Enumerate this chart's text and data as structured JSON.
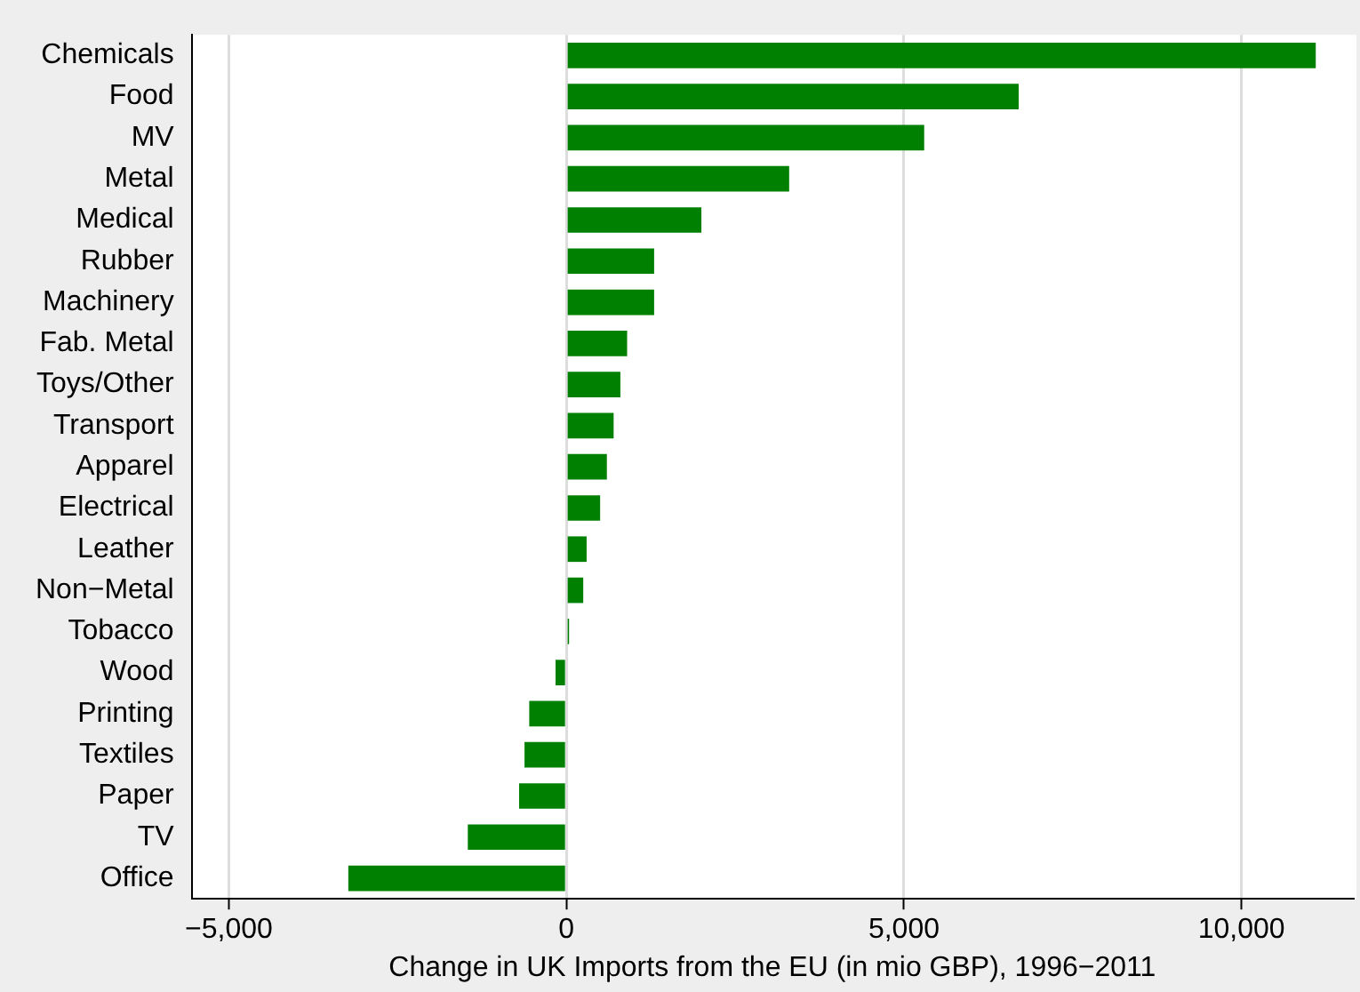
{
  "chart_data": {
    "type": "bar",
    "orientation": "horizontal",
    "xlabel": "Change in UK Imports from the EU (in mio GBP), 1996−2011",
    "categories": [
      "Chemicals",
      "Food",
      "MV",
      "Metal",
      "Medical",
      "Rubber",
      "Machinery",
      "Fab. Metal",
      "Toys/Other",
      "Transport",
      "Apparel",
      "Electrical",
      "Leather",
      "Non−Metal",
      "Tobacco",
      "Wood",
      "Printing",
      "Textiles",
      "Paper",
      "TV",
      "Office"
    ],
    "values": [
      11100,
      6700,
      5300,
      3300,
      2000,
      1300,
      1300,
      900,
      800,
      700,
      600,
      500,
      300,
      250,
      40,
      -160,
      -550,
      -620,
      -700,
      -1460,
      -3230
    ],
    "color": "#008000",
    "xlim": [
      -5550,
      11650
    ],
    "xticks": [
      {
        "value": -5000,
        "label": "−5,000"
      },
      0,
      {
        "value": 5000,
        "label": "5,000"
      },
      {
        "value": 10000,
        "label": "10,000"
      }
    ],
    "grid": "x",
    "legend": false
  }
}
